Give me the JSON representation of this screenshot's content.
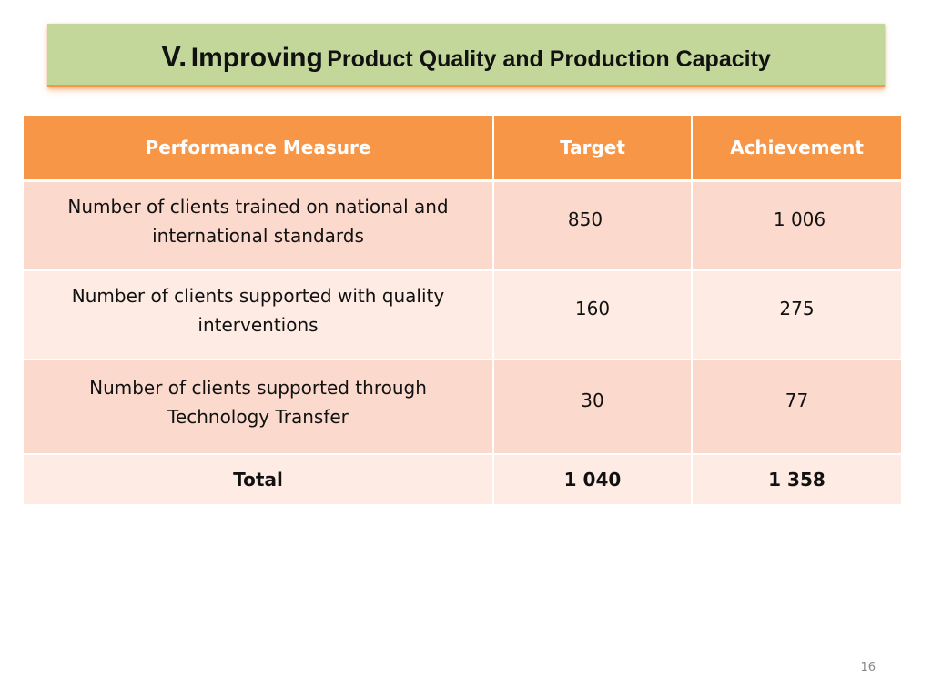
{
  "slide": {
    "title_roman": "V.",
    "title_big": "Improving",
    "title_small": "Product Quality and Production Capacity",
    "page_number": "16",
    "colors": {
      "header_orange": "#f79646",
      "title_green": "#c4d79b",
      "row_dark": "#fbd9cc",
      "row_light": "#fdebe4"
    }
  },
  "table": {
    "headers": [
      "Performance Measure",
      "Target",
      "Achievement"
    ],
    "rows": [
      {
        "measure": "Number of clients trained on national and international standards",
        "target": "850",
        "achievement": "1 006"
      },
      {
        "measure": "Number of clients supported with quality interventions",
        "target": "160",
        "achievement": "275"
      },
      {
        "measure": "Number of clients supported through Technology Transfer",
        "target": "30",
        "achievement": "77"
      }
    ],
    "total": {
      "label": "Total",
      "target": "1 040",
      "achievement": "1 358"
    }
  }
}
